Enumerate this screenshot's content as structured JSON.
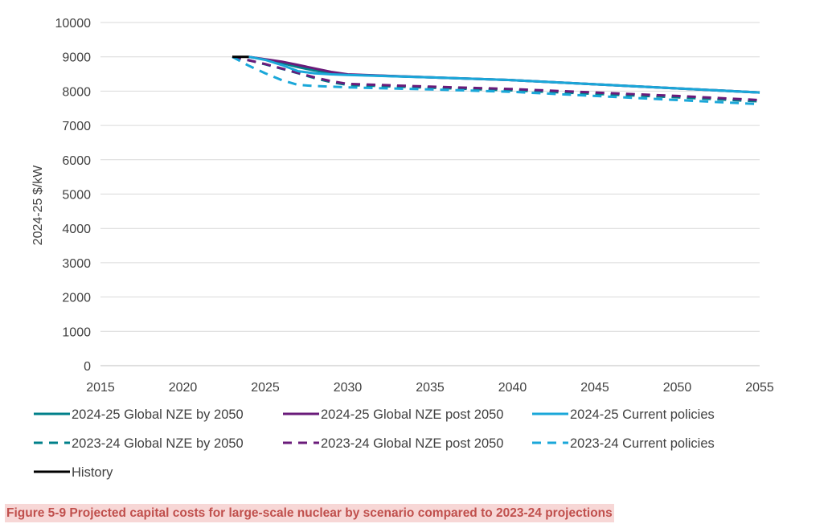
{
  "chart_data": {
    "type": "line",
    "title": "",
    "xlabel": "",
    "ylabel": "2024-25 $/kW",
    "xlim": [
      2015,
      2055
    ],
    "ylim": [
      0,
      10000
    ],
    "xticks": [
      2015,
      2020,
      2025,
      2030,
      2035,
      2040,
      2045,
      2050,
      2055
    ],
    "yticks": [
      0,
      1000,
      2000,
      3000,
      4000,
      5000,
      6000,
      7000,
      8000,
      9000,
      10000
    ],
    "grid": true,
    "legend_position": "bottom",
    "series": [
      {
        "name": "2024-25 Global NZE by 2050",
        "color": "#00808a",
        "dash": false,
        "x": [
          2024,
          2025,
          2026,
          2027,
          2028,
          2029,
          2030,
          2035,
          2040,
          2045,
          2050,
          2055
        ],
        "y": [
          9000,
          8920,
          8820,
          8700,
          8600,
          8530,
          8480,
          8400,
          8320,
          8200,
          8080,
          7960
        ]
      },
      {
        "name": "2024-25 Global NZE post 2050",
        "color": "#6a1b7a",
        "dash": false,
        "x": [
          2024,
          2025,
          2026,
          2027,
          2028,
          2029,
          2030,
          2035,
          2040,
          2045,
          2050,
          2055
        ],
        "y": [
          9000,
          8930,
          8860,
          8760,
          8660,
          8560,
          8490,
          8400,
          8320,
          8200,
          8080,
          7960
        ]
      },
      {
        "name": "2024-25 Current policies",
        "color": "#1aa7d9",
        "dash": false,
        "x": [
          2024,
          2025,
          2026,
          2027,
          2028,
          2029,
          2030,
          2035,
          2040,
          2045,
          2050,
          2055
        ],
        "y": [
          9000,
          8910,
          8760,
          8580,
          8520,
          8490,
          8470,
          8400,
          8320,
          8200,
          8080,
          7960
        ]
      },
      {
        "name": "2023-24 Global NZE by 2050",
        "color": "#00808a",
        "dash": true,
        "x": [
          2023,
          2024,
          2025,
          2026,
          2027,
          2028,
          2029,
          2030,
          2035,
          2040,
          2045,
          2050,
          2055
        ],
        "y": [
          9000,
          8900,
          8780,
          8650,
          8520,
          8380,
          8260,
          8180,
          8100,
          8020,
          7920,
          7820,
          7700
        ]
      },
      {
        "name": "2023-24 Global NZE post 2050",
        "color": "#6a1b7a",
        "dash": true,
        "x": [
          2023,
          2024,
          2025,
          2026,
          2027,
          2028,
          2029,
          2030,
          2035,
          2040,
          2045,
          2050,
          2055
        ],
        "y": [
          9000,
          8900,
          8790,
          8660,
          8530,
          8400,
          8290,
          8210,
          8130,
          8060,
          7960,
          7860,
          7740
        ]
      },
      {
        "name": "2023-24 Current policies",
        "color": "#1aa7d9",
        "dash": true,
        "x": [
          2023,
          2024,
          2025,
          2026,
          2027,
          2028,
          2029,
          2030,
          2035,
          2040,
          2045,
          2050,
          2055
        ],
        "y": [
          9000,
          8740,
          8520,
          8320,
          8180,
          8150,
          8130,
          8110,
          8050,
          7980,
          7860,
          7740,
          7620
        ]
      },
      {
        "name": "History",
        "color": "#000000",
        "dash": false,
        "x": [
          2023,
          2024
        ],
        "y": [
          9000,
          9000
        ]
      }
    ]
  },
  "caption": "Figure 5-9 Projected capital costs for large-scale nuclear by scenario compared to 2023-24 projections"
}
